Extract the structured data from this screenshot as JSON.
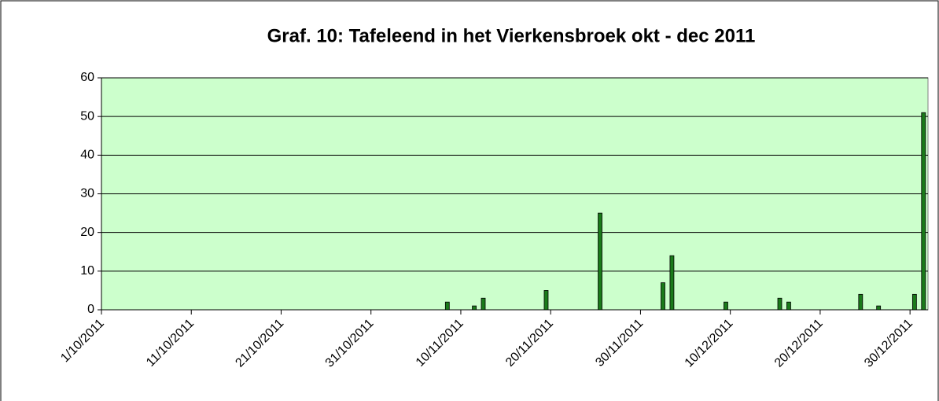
{
  "chart_data": {
    "type": "bar",
    "title": "Graf. 10: Tafeleend in het Vierkensbroek okt - dec 2011",
    "x": [
      "8/11/2011",
      "11/11/2011",
      "12/11/2011",
      "19/11/2011",
      "25/11/2011",
      "2/12/2011",
      "3/12/2011",
      "9/12/2011",
      "15/12/2011",
      "16/12/2011",
      "24/12/2011",
      "26/12/2011",
      "30/12/2011",
      "31/12/2011"
    ],
    "values": [
      2,
      1,
      3,
      5,
      25,
      7,
      14,
      2,
      3,
      2,
      4,
      1,
      4,
      51
    ],
    "color": "#1a7a1a",
    "xlim": [
      "1/10/2011",
      "1/1/2012"
    ],
    "xticks": [
      "1/10/2011",
      "11/10/2011",
      "21/10/2011",
      "31/10/2011",
      "10/11/2011",
      "20/11/2011",
      "30/11/2011",
      "10/12/2011",
      "20/12/2011",
      "30/12/2011"
    ],
    "ylim": [
      0,
      60
    ],
    "yticks": [
      0,
      10,
      20,
      30,
      40,
      50,
      60
    ],
    "grid": true,
    "plot_background": "#ccffcc"
  }
}
